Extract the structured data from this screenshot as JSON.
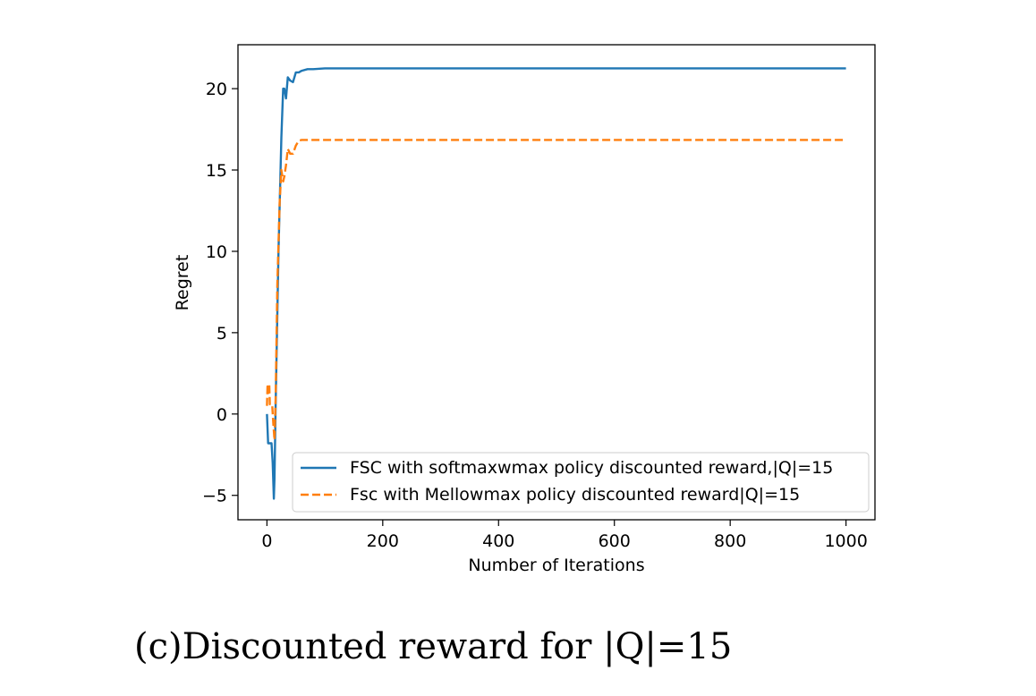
{
  "chart_data": {
    "type": "line",
    "title": "",
    "xlabel": "Number of Iterations",
    "ylabel": "Regret",
    "xlim": [
      -50,
      1050
    ],
    "ylim": [
      -6.5,
      22.7
    ],
    "xticks": [
      0,
      200,
      400,
      600,
      800,
      1000
    ],
    "yticks": [
      -5,
      0,
      5,
      10,
      15,
      20
    ],
    "ytick_labels": [
      "−5",
      "0",
      "5",
      "10",
      "15",
      "20"
    ],
    "grid": false,
    "legend_position": "lower-right",
    "series": [
      {
        "name": "FSC with softmaxwmax policy discounted reward,|Q|=15",
        "color": "#1f77b4",
        "style": "solid",
        "x": [
          0,
          2,
          5,
          8,
          10,
          12,
          13,
          15,
          20,
          25,
          28,
          30,
          33,
          36,
          40,
          45,
          50,
          55,
          60,
          70,
          80,
          100,
          150,
          200,
          400,
          600,
          800,
          1000
        ],
        "y": [
          0,
          -1.8,
          -1.8,
          -1.8,
          -3.0,
          -5.2,
          -4.0,
          0.5,
          10.0,
          17.0,
          20.0,
          20.0,
          19.4,
          20.7,
          20.5,
          20.4,
          21.0,
          21.0,
          21.1,
          21.2,
          21.2,
          21.25,
          21.25,
          21.25,
          21.25,
          21.25,
          21.25,
          21.25
        ]
      },
      {
        "name": "Fsc with Mellowmax policy discounted  reward|Q|=15",
        "color": "#ff7f0e",
        "style": "dashed",
        "x": [
          0,
          1,
          3,
          4,
          5,
          6,
          7,
          9,
          11,
          13,
          15,
          18,
          22,
          25,
          28,
          30,
          33,
          36,
          40,
          45,
          50,
          55,
          60,
          70,
          100,
          200,
          400,
          600,
          800,
          1000
        ],
        "y": [
          0.5,
          1.7,
          1.3,
          1.8,
          0.6,
          0.6,
          0.6,
          0.6,
          -0.6,
          -1.6,
          1.0,
          8.0,
          13.0,
          15.0,
          14.3,
          14.6,
          15.3,
          16.3,
          16.0,
          16.0,
          16.5,
          16.8,
          16.85,
          16.85,
          16.85,
          16.85,
          16.85,
          16.85,
          16.85,
          16.85
        ]
      }
    ]
  },
  "caption": "(c)Discounted reward for |Q|=15"
}
